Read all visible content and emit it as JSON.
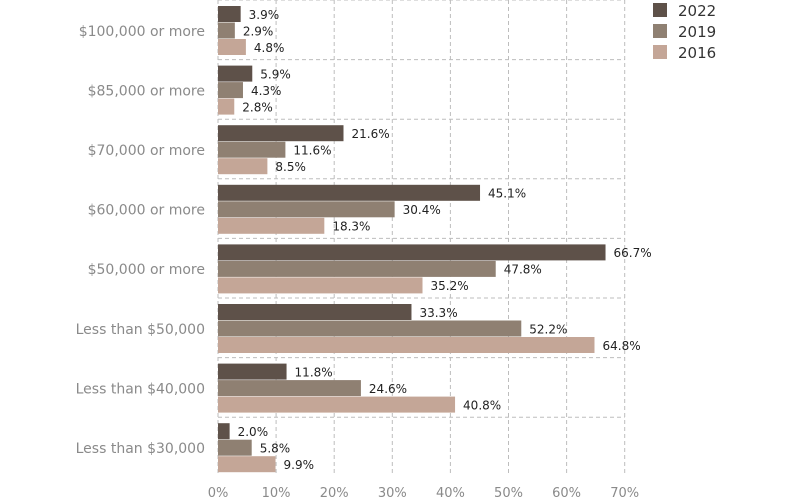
{
  "chart_data": {
    "type": "bar",
    "orientation": "horizontal",
    "categories": [
      "$100,000 or more",
      "$85,000 or more",
      "$70,000 or more",
      "$60,000 or more",
      "$50,000 or more",
      "Less than $50,000",
      "Less than $40,000",
      "Less than $30,000"
    ],
    "series": [
      {
        "name": "2022",
        "color": "#5e5149",
        "values": [
          3.9,
          5.9,
          21.6,
          45.1,
          66.7,
          33.3,
          11.8,
          2.0
        ],
        "labels": [
          "3.9%",
          "5.9%",
          "21.6%",
          "45.1%",
          "66.7%",
          "33.3%",
          "11.8%",
          "2.0%"
        ]
      },
      {
        "name": "2019",
        "color": "#8f8072",
        "values": [
          2.9,
          4.3,
          11.6,
          30.4,
          47.8,
          52.2,
          24.6,
          5.8
        ],
        "labels": [
          "2.9%",
          "4.3%",
          "11.6%",
          "30.4%",
          "47.8%",
          "52.2%",
          "24.6%",
          "5.8%"
        ]
      },
      {
        "name": "2016",
        "color": "#c4a697",
        "values": [
          4.8,
          2.8,
          8.5,
          18.3,
          35.2,
          64.8,
          40.8,
          9.9
        ],
        "labels": [
          "4.8%",
          "2.8%",
          "8.5%",
          "18.3%",
          "35.2%",
          "64.8%",
          "40.8%",
          "9.9%"
        ]
      }
    ],
    "xlim": [
      0,
      70
    ],
    "xticks": [
      "0%",
      "10%",
      "20%",
      "30%",
      "40%",
      "50%",
      "60%",
      "70%"
    ],
    "grid": true,
    "legend": "top-right"
  }
}
